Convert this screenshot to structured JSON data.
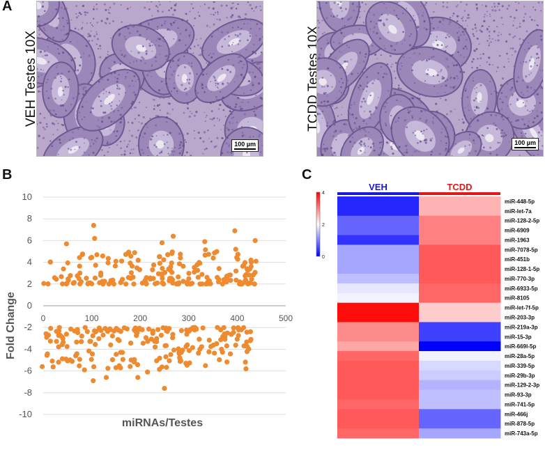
{
  "panels": {
    "a": {
      "letter": "A"
    },
    "b": {
      "letter": "B"
    },
    "c": {
      "letter": "C"
    }
  },
  "micrographs": {
    "veh": {
      "title": "VEH Testes 10X",
      "scale": "100 µm"
    },
    "tcdd": {
      "title": "TCDD Testes 10X",
      "scale": "100 µm"
    }
  },
  "chart_data": [
    {
      "type": "scatter",
      "title": "",
      "xlabel": "miRNAs/Testes",
      "ylabel": "Fold Change",
      "xlim": [
        0,
        500
      ],
      "ylim": [
        -10,
        10
      ],
      "xticks": [
        "0",
        "100",
        "200",
        "300",
        "400",
        "500"
      ],
      "yticks": [
        "10",
        "8",
        "6",
        "4",
        "2",
        "0",
        "-2",
        "-4",
        "-6",
        "-8",
        "-10"
      ],
      "color": "#ee8a30",
      "highlight_points": [
        [
          104,
          7.4
        ],
        [
          106,
          6.2
        ],
        [
          268,
          6.4
        ],
        [
          395,
          6.9
        ],
        [
          437,
          6.0
        ],
        [
          333,
          5.9
        ],
        [
          48,
          5.7
        ],
        [
          245,
          5.8
        ],
        [
          -2,
          -5.6
        ],
        [
          103,
          -6.9
        ],
        [
          418,
          -5.8
        ],
        [
          250,
          -7.6
        ],
        [
          195,
          -6.6
        ],
        [
          130,
          -6.6
        ],
        [
          215,
          -6.1
        ],
        [
          85,
          -5.9
        ],
        [
          150,
          -5.7
        ]
      ],
      "n_points": 420,
      "series_note": "approximately 420 miRNAs with |fold change| >= 2, upregulated between 2 and 7.4, downregulated between -2 and -7.6"
    },
    {
      "type": "heatmap",
      "columns": [
        {
          "name": "VEH",
          "color": "#1a1ad0"
        },
        {
          "name": "TCDD",
          "color": "#e01818"
        }
      ],
      "rows": [
        "miR-448-5p",
        "miR-let-7a",
        "miR-128-2-5p",
        "miR-6909",
        "miR-1963",
        "miR-7078-5p",
        "miR-451b",
        "miR-128-1-5p",
        "miR-770-3p",
        "miR-6933-5p",
        "miR-8105",
        "miR-let-7f-5p",
        "miR-203-3p",
        "miR-219a-3p",
        "miR-15-3p",
        "miR-669l-5p",
        "miR-28a-5p",
        "miR-339-5p",
        "miR-29b-3p",
        "miR-129-2-3p",
        "miR-93-3p",
        "miR-741-5p",
        "miR-466j",
        "miR-878-5p",
        "miR-743a-5p"
      ],
      "values": [
        [
          0.3,
          2.6
        ],
        [
          0.3,
          2.6
        ],
        [
          0.8,
          3.0
        ],
        [
          0.8,
          3.0
        ],
        [
          0.4,
          3.0
        ],
        [
          1.3,
          3.3
        ],
        [
          1.3,
          3.3
        ],
        [
          1.3,
          3.3
        ],
        [
          1.5,
          3.3
        ],
        [
          1.8,
          3.2
        ],
        [
          1.9,
          3.2
        ],
        [
          3.9,
          2.4
        ],
        [
          3.9,
          2.4
        ],
        [
          2.9,
          0.5
        ],
        [
          2.9,
          0.5
        ],
        [
          2.7,
          0.0
        ],
        [
          3.2,
          1.9
        ],
        [
          3.3,
          1.7
        ],
        [
          3.3,
          1.6
        ],
        [
          3.3,
          1.4
        ],
        [
          3.3,
          1.5
        ],
        [
          3.2,
          1.5
        ],
        [
          3.3,
          0.8
        ],
        [
          3.3,
          0.8
        ],
        [
          3.2,
          1.3
        ]
      ],
      "colorbar": {
        "min": 0,
        "max": 4,
        "ticks": [
          "4",
          "2",
          "0"
        ]
      }
    }
  ]
}
